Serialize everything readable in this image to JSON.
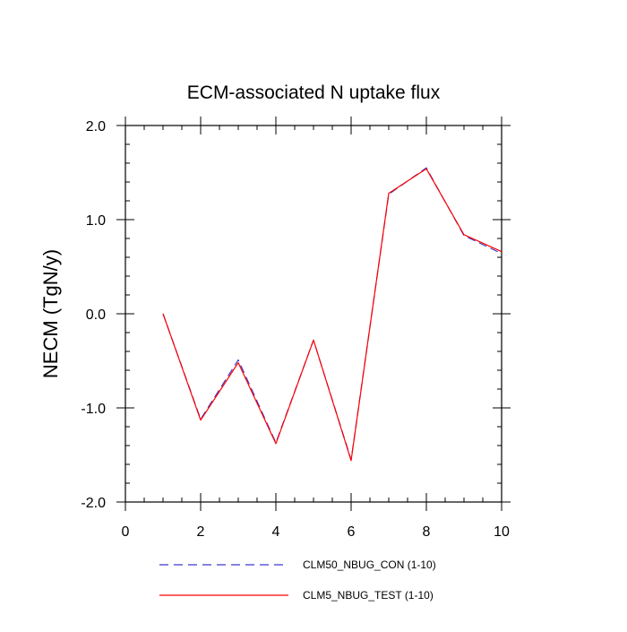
{
  "chart_data": {
    "type": "line",
    "title": "ECM-associated N uptake flux",
    "xlabel": "",
    "ylabel": "NECM  (TgN/y)",
    "xlim": [
      0,
      10
    ],
    "ylim": [
      -2.0,
      2.0
    ],
    "x_ticks": [
      0,
      2,
      4,
      6,
      8,
      10
    ],
    "x_tick_labels": [
      "0",
      "2",
      "4",
      "6",
      "8",
      "10"
    ],
    "y_ticks": [
      -2.0,
      -1.0,
      0.0,
      1.0,
      2.0
    ],
    "y_tick_labels": [
      "-2.0",
      "-1.0",
      "0.0",
      "1.0",
      "2.0"
    ],
    "grid": false,
    "legend_position": "bottom",
    "x": [
      1,
      2,
      3,
      4,
      5,
      6,
      7,
      8,
      9,
      10
    ],
    "series": [
      {
        "name": "CLM50_NBUG_CON (1-10)",
        "values": [
          0.0,
          -1.12,
          -0.49,
          -1.37,
          -0.28,
          -1.55,
          1.27,
          1.55,
          0.83,
          0.64
        ],
        "color": "#3a3acd",
        "dash": "dashed"
      },
      {
        "name": "CLM5_NBUG_TEST (1-10)",
        "values": [
          0.0,
          -1.13,
          -0.52,
          -1.38,
          -0.28,
          -1.56,
          1.28,
          1.54,
          0.84,
          0.66
        ],
        "color": "#ff0000",
        "dash": "solid"
      }
    ]
  }
}
